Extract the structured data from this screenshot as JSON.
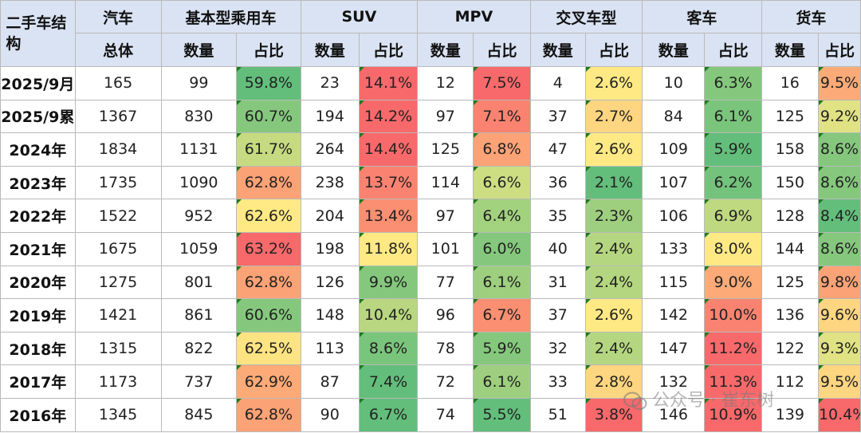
{
  "header": {
    "corner": "二手车结构",
    "groups": [
      "汽车",
      "基本型乘用车",
      "SUV",
      "MPV",
      "交叉车型",
      "客车",
      "货车"
    ],
    "total_label": "总体",
    "qty_label": "数量",
    "share_label": "占比"
  },
  "rows": [
    {
      "label": "2025/9月",
      "total": "165",
      "c": [
        [
          "99",
          "59.8%"
        ],
        [
          "23",
          "14.1%"
        ],
        [
          "12",
          "7.5%"
        ],
        [
          "4",
          "2.6%"
        ],
        [
          "10",
          "6.3%"
        ],
        [
          "16",
          "9.5%"
        ]
      ]
    },
    {
      "label": "2025/9累",
      "total": "1367",
      "c": [
        [
          "830",
          "60.7%"
        ],
        [
          "194",
          "14.2%"
        ],
        [
          "97",
          "7.1%"
        ],
        [
          "37",
          "2.7%"
        ],
        [
          "84",
          "6.1%"
        ],
        [
          "125",
          "9.2%"
        ]
      ]
    },
    {
      "label": "2024年",
      "total": "1834",
      "c": [
        [
          "1131",
          "61.7%"
        ],
        [
          "264",
          "14.4%"
        ],
        [
          "125",
          "6.8%"
        ],
        [
          "47",
          "2.6%"
        ],
        [
          "109",
          "5.9%"
        ],
        [
          "158",
          "8.6%"
        ]
      ]
    },
    {
      "label": "2023年",
      "total": "1735",
      "c": [
        [
          "1090",
          "62.8%"
        ],
        [
          "238",
          "13.7%"
        ],
        [
          "114",
          "6.6%"
        ],
        [
          "36",
          "2.1%"
        ],
        [
          "107",
          "6.2%"
        ],
        [
          "150",
          "8.6%"
        ]
      ]
    },
    {
      "label": "2022年",
      "total": "1522",
      "c": [
        [
          "952",
          "62.6%"
        ],
        [
          "204",
          "13.4%"
        ],
        [
          "97",
          "6.4%"
        ],
        [
          "35",
          "2.3%"
        ],
        [
          "106",
          "6.9%"
        ],
        [
          "128",
          "8.4%"
        ]
      ]
    },
    {
      "label": "2021年",
      "total": "1675",
      "c": [
        [
          "1059",
          "63.2%"
        ],
        [
          "198",
          "11.8%"
        ],
        [
          "101",
          "6.0%"
        ],
        [
          "40",
          "2.4%"
        ],
        [
          "133",
          "8.0%"
        ],
        [
          "144",
          "8.6%"
        ]
      ]
    },
    {
      "label": "2020年",
      "total": "1275",
      "c": [
        [
          "801",
          "62.8%"
        ],
        [
          "126",
          "9.9%"
        ],
        [
          "77",
          "6.1%"
        ],
        [
          "31",
          "2.4%"
        ],
        [
          "115",
          "9.0%"
        ],
        [
          "125",
          "9.8%"
        ]
      ]
    },
    {
      "label": "2019年",
      "total": "1421",
      "c": [
        [
          "861",
          "60.6%"
        ],
        [
          "148",
          "10.4%"
        ],
        [
          "96",
          "6.7%"
        ],
        [
          "37",
          "2.6%"
        ],
        [
          "142",
          "10.0%"
        ],
        [
          "136",
          "9.6%"
        ]
      ]
    },
    {
      "label": "2018年",
      "total": "1315",
      "c": [
        [
          "822",
          "62.5%"
        ],
        [
          "113",
          "8.6%"
        ],
        [
          "78",
          "5.9%"
        ],
        [
          "32",
          "2.4%"
        ],
        [
          "147",
          "11.2%"
        ],
        [
          "122",
          "9.3%"
        ]
      ]
    },
    {
      "label": "2017年",
      "total": "1173",
      "c": [
        [
          "737",
          "62.9%"
        ],
        [
          "87",
          "7.4%"
        ],
        [
          "72",
          "6.1%"
        ],
        [
          "33",
          "2.8%"
        ],
        [
          "132",
          "11.3%"
        ],
        [
          "112",
          "9.5%"
        ]
      ]
    },
    {
      "label": "2016年",
      "total": "1345",
      "c": [
        [
          "845",
          "62.8%"
        ],
        [
          "90",
          "6.7%"
        ],
        [
          "74",
          "5.5%"
        ],
        [
          "51",
          "3.8%"
        ],
        [
          "146",
          "10.9%"
        ],
        [
          "139",
          "10.4%"
        ]
      ]
    }
  ],
  "share_colors": [
    [
      "#63be7b",
      "#f8696b",
      "#f8696b",
      "#ffe984",
      "#85c87d",
      "#fcaa77"
    ],
    [
      "#85c87d",
      "#f8696b",
      "#f98370",
      "#fed580",
      "#7ac57c",
      "#e0e283"
    ],
    [
      "#c6db81",
      "#f8696b",
      "#fba276",
      "#ffe984",
      "#63be7b",
      "#85c87d"
    ],
    [
      "#fba276",
      "#f98370",
      "#cddd82",
      "#63be7b",
      "#74c37c",
      "#85c87d"
    ],
    [
      "#ffe984",
      "#fa8f72",
      "#a3d27f",
      "#9ecf7f",
      "#bed980",
      "#63be7b"
    ],
    [
      "#f8696b",
      "#ffe984",
      "#85c87d",
      "#b5d680",
      "#ffe984",
      "#85c87d"
    ],
    [
      "#fba276",
      "#85c87d",
      "#9ecf7f",
      "#b5d680",
      "#fcaa77",
      "#fba276"
    ],
    [
      "#85c87d",
      "#b8d780",
      "#fa8f72",
      "#ffe984",
      "#f98370",
      "#fed580"
    ],
    [
      "#fee382",
      "#7ac57c",
      "#85c87d",
      "#b5d680",
      "#f8696b",
      "#e0e283"
    ],
    [
      "#fcaa77",
      "#63be7b",
      "#9ecf7f",
      "#fed580",
      "#f8696b",
      "#fed580"
    ],
    [
      "#fba276",
      "#63be7b",
      "#63be7b",
      "#f8696b",
      "#f8696b",
      "#f8696b"
    ]
  ],
  "watermark": "公众号 · 崔东树"
}
